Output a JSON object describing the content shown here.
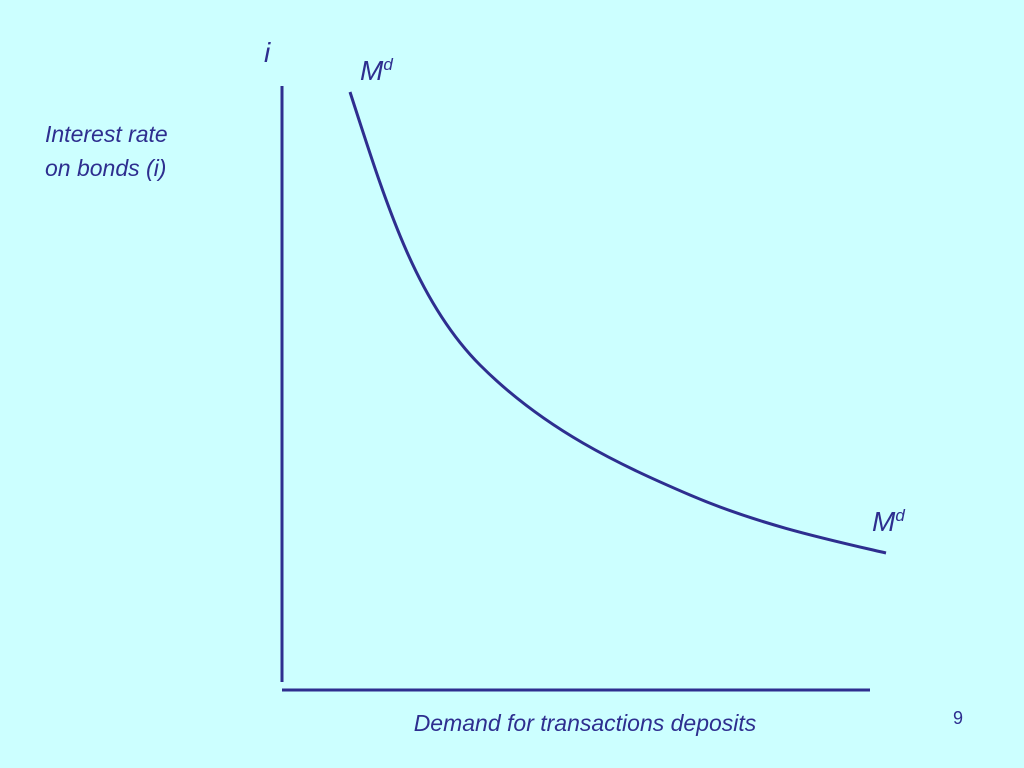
{
  "axis_symbol": "i",
  "curve_labels": [
    {
      "base": "M",
      "superscript": "d"
    },
    {
      "base": "M",
      "superscript": "d"
    }
  ],
  "y_axis_label": [
    "Interest rate",
    "on bonds (i)"
  ],
  "x_axis_label": "Demand for transactions deposits",
  "page_number": "9"
}
